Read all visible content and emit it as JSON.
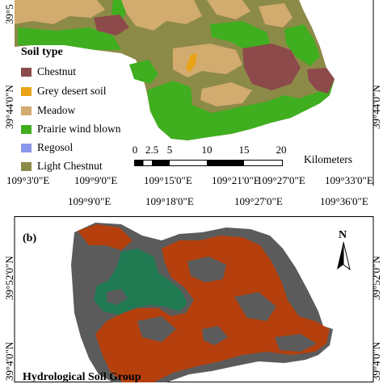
{
  "panel_a": {
    "legend": {
      "title": "Soil type",
      "items": [
        {
          "label": "Chestnut",
          "color": "#8c4a4a"
        },
        {
          "label": "Grey desert soil",
          "color": "#e8a317"
        },
        {
          "label": "Meadow",
          "color": "#d2ab6f"
        },
        {
          "label": "Prairie wind blown",
          "color": "#3fae1f"
        },
        {
          "label": "Regosol",
          "color": "#8a97ea"
        },
        {
          "label": "Light Chestnut",
          "color": "#8c8a47"
        }
      ]
    },
    "scale_bar": {
      "ticks": [
        "0",
        "2.5",
        "5",
        "10",
        "15",
        "20"
      ],
      "unit": "Kilometers"
    },
    "lat_labels": [
      "39°5",
      "39°44'0\"N",
      "39°44'0\"N"
    ],
    "lon_top": [
      "109°3'0\"E",
      "109°9'0\"E",
      "109°15'0\"E",
      "109°21'0\"E",
      "109°27'0\"E",
      "109°33'0\"E"
    ],
    "lon_bottom": [
      "109°9'0\"E",
      "109°18'0\"E",
      "109°27'0\"E",
      "109°36'0\"E"
    ]
  },
  "panel_b": {
    "label": "(b)",
    "north": "N",
    "lat_labels": [
      "39°52'0\"N",
      "39°52'0\"N",
      "39°4'0\"N",
      "39°4'0\"N"
    ],
    "legend_title": "Hydrological Soil Group",
    "colors": {
      "orange": "#b5400e",
      "grey": "#5b5b5b",
      "green": "#1f7a52"
    }
  }
}
